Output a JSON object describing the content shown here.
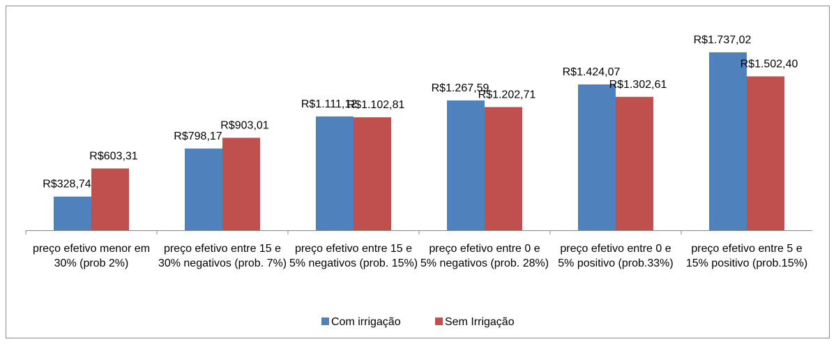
{
  "chart_data": {
    "type": "bar",
    "categories": [
      "preço efetivo menor em 30% (prob 2%)",
      "preço efetivo entre 15 e 30% negativos (prob. 7%)",
      "preço efetivo entre 15 e 5% negativos (prob. 15%)",
      "preço efetivo entre 0 e 5% negativos (prob. 28%)",
      "preço efetivo entre 0 e 5% positivo (prob.33%)",
      "preço efetivo entre 5 e 15% positivo (prob.15%)"
    ],
    "series": [
      {
        "name": "Com irrigação",
        "color": "#4f81bd",
        "values": [
          328.74,
          798.17,
          1111.12,
          1267.59,
          1424.07,
          1737.02
        ],
        "value_labels": [
          "R$328,74",
          "R$798,17",
          "R$1.111,12",
          "R$1.267,59",
          "R$1.424,07",
          "R$1.737,02"
        ]
      },
      {
        "name": "Sem Irrigação",
        "color": "#c0504d",
        "values": [
          603.31,
          903.01,
          1102.81,
          1202.71,
          1302.61,
          1502.4
        ],
        "value_labels": [
          "R$603,31",
          "R$903,01",
          "R$1.102,81",
          "R$1.202,71",
          "R$1.302,61",
          "R$1.502,40"
        ]
      }
    ],
    "legend": "bottom"
  }
}
